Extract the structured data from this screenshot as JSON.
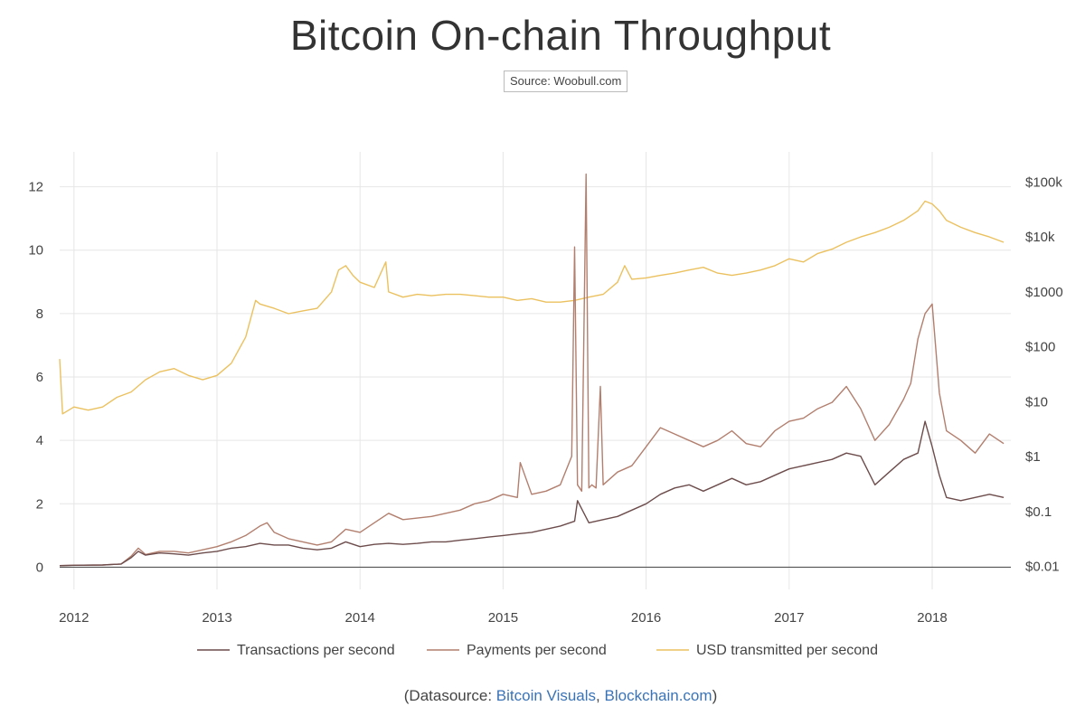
{
  "chart_data": {
    "type": "line",
    "title": "Bitcoin On-chain Throughput",
    "source": "Source: Woobull.com",
    "footer": {
      "prefix": "(Datasource: ",
      "link1": "Bitcoin Visuals",
      "separator": ", ",
      "link2": "Blockchain.com",
      "suffix": ")"
    },
    "x_ticks": [
      "2012",
      "2013",
      "2014",
      "2015",
      "2016",
      "2017",
      "2018"
    ],
    "x_range": [
      2011.9,
      2018.55
    ],
    "y_left": {
      "ticks": [
        "0",
        "2",
        "4",
        "6",
        "8",
        "10",
        "12"
      ],
      "range": [
        -0.7,
        13.1
      ]
    },
    "y_right": {
      "scale": "log",
      "ticks": [
        "$0.01",
        "$0.1",
        "$1",
        "$10",
        "$100",
        "$1000",
        "$10k",
        "$100k"
      ]
    },
    "grid": true,
    "legend_position": "bottom",
    "colors": {
      "transactions": "#6d4c4c",
      "payments": "#b27f6e",
      "usd": "#ebc15f",
      "link": "#3a73b6"
    },
    "series": [
      {
        "name": "Transactions per second",
        "axis": "left",
        "x": [
          2011.9,
          2012.0,
          2012.2,
          2012.33,
          2012.4,
          2012.45,
          2012.5,
          2012.6,
          2012.7,
          2012.8,
          2012.9,
          2013.0,
          2013.1,
          2013.2,
          2013.3,
          2013.4,
          2013.5,
          2013.6,
          2013.7,
          2013.8,
          2013.9,
          2014.0,
          2014.1,
          2014.2,
          2014.3,
          2014.4,
          2014.5,
          2014.6,
          2014.7,
          2014.8,
          2014.9,
          2015.0,
          2015.1,
          2015.2,
          2015.3,
          2015.4,
          2015.5,
          2015.52,
          2015.6,
          2015.7,
          2015.8,
          2015.9,
          2016.0,
          2016.1,
          2016.2,
          2016.3,
          2016.4,
          2016.5,
          2016.6,
          2016.7,
          2016.8,
          2016.9,
          2017.0,
          2017.1,
          2017.2,
          2017.3,
          2017.4,
          2017.5,
          2017.6,
          2017.7,
          2017.8,
          2017.9,
          2017.95,
          2018.0,
          2018.05,
          2018.1,
          2018.2,
          2018.3,
          2018.4,
          2018.5
        ],
        "y": [
          0.05,
          0.06,
          0.07,
          0.1,
          0.3,
          0.5,
          0.38,
          0.45,
          0.42,
          0.38,
          0.45,
          0.5,
          0.6,
          0.65,
          0.75,
          0.7,
          0.7,
          0.6,
          0.55,
          0.6,
          0.8,
          0.65,
          0.72,
          0.75,
          0.72,
          0.75,
          0.8,
          0.8,
          0.85,
          0.9,
          0.95,
          1.0,
          1.05,
          1.1,
          1.2,
          1.3,
          1.45,
          2.1,
          1.4,
          1.5,
          1.6,
          1.8,
          2.0,
          2.3,
          2.5,
          2.6,
          2.4,
          2.6,
          2.8,
          2.6,
          2.7,
          2.9,
          3.1,
          3.2,
          3.3,
          3.4,
          3.6,
          3.5,
          2.6,
          3.0,
          3.4,
          3.6,
          4.6,
          3.8,
          2.9,
          2.2,
          2.1,
          2.2,
          2.3,
          2.2
        ]
      },
      {
        "name": "Payments per second",
        "axis": "left",
        "x": [
          2011.9,
          2012.0,
          2012.2,
          2012.33,
          2012.4,
          2012.45,
          2012.5,
          2012.6,
          2012.7,
          2012.8,
          2012.9,
          2013.0,
          2013.1,
          2013.2,
          2013.3,
          2013.35,
          2013.4,
          2013.5,
          2013.6,
          2013.7,
          2013.8,
          2013.9,
          2014.0,
          2014.1,
          2014.2,
          2014.3,
          2014.4,
          2014.5,
          2014.6,
          2014.7,
          2014.8,
          2014.9,
          2015.0,
          2015.1,
          2015.12,
          2015.2,
          2015.3,
          2015.4,
          2015.48,
          2015.5,
          2015.52,
          2015.55,
          2015.58,
          2015.6,
          2015.62,
          2015.65,
          2015.68,
          2015.7,
          2015.8,
          2015.9,
          2016.0,
          2016.1,
          2016.2,
          2016.3,
          2016.4,
          2016.5,
          2016.6,
          2016.7,
          2016.8,
          2016.9,
          2017.0,
          2017.1,
          2017.2,
          2017.3,
          2017.4,
          2017.5,
          2017.6,
          2017.7,
          2017.8,
          2017.85,
          2017.9,
          2017.95,
          2018.0,
          2018.05,
          2018.1,
          2018.2,
          2018.3,
          2018.4,
          2018.5
        ],
        "y": [
          0.05,
          0.06,
          0.07,
          0.1,
          0.35,
          0.6,
          0.4,
          0.5,
          0.5,
          0.45,
          0.55,
          0.65,
          0.8,
          1.0,
          1.3,
          1.4,
          1.1,
          0.9,
          0.8,
          0.7,
          0.8,
          1.2,
          1.1,
          1.4,
          1.7,
          1.5,
          1.55,
          1.6,
          1.7,
          1.8,
          2.0,
          2.1,
          2.3,
          2.2,
          3.3,
          2.3,
          2.4,
          2.6,
          3.5,
          10.1,
          2.6,
          2.4,
          12.4,
          2.5,
          2.6,
          2.5,
          5.7,
          2.6,
          3.0,
          3.2,
          3.8,
          4.4,
          4.2,
          4.0,
          3.8,
          4.0,
          4.3,
          3.9,
          3.8,
          4.3,
          4.6,
          4.7,
          5.0,
          5.2,
          5.7,
          5.0,
          4.0,
          4.5,
          5.3,
          5.8,
          7.2,
          8.0,
          8.3,
          5.5,
          4.3,
          4.0,
          3.6,
          4.2,
          3.9
        ]
      },
      {
        "name": "USD transmitted per second",
        "axis": "right",
        "x": [
          2011.9,
          2011.92,
          2012.0,
          2012.1,
          2012.2,
          2012.3,
          2012.4,
          2012.5,
          2012.6,
          2012.7,
          2012.8,
          2012.9,
          2013.0,
          2013.1,
          2013.2,
          2013.27,
          2013.3,
          2013.4,
          2013.5,
          2013.6,
          2013.7,
          2013.8,
          2013.85,
          2013.9,
          2013.95,
          2014.0,
          2014.1,
          2014.18,
          2014.2,
          2014.3,
          2014.4,
          2014.5,
          2014.6,
          2014.7,
          2014.8,
          2014.9,
          2015.0,
          2015.1,
          2015.2,
          2015.3,
          2015.4,
          2015.5,
          2015.6,
          2015.7,
          2015.8,
          2015.85,
          2015.9,
          2016.0,
          2016.1,
          2016.2,
          2016.3,
          2016.4,
          2016.5,
          2016.6,
          2016.7,
          2016.8,
          2016.9,
          2017.0,
          2017.1,
          2017.2,
          2017.3,
          2017.4,
          2017.5,
          2017.6,
          2017.7,
          2017.8,
          2017.9,
          2017.95,
          2018.0,
          2018.05,
          2018.1,
          2018.2,
          2018.3,
          2018.4,
          2018.5
        ],
        "y": [
          60,
          6,
          8,
          7,
          8,
          12,
          15,
          25,
          35,
          40,
          30,
          25,
          30,
          50,
          150,
          700,
          600,
          500,
          400,
          450,
          500,
          1000,
          2500,
          3000,
          2000,
          1500,
          1200,
          3500,
          1000,
          800,
          900,
          850,
          900,
          900,
          850,
          800,
          800,
          700,
          750,
          650,
          650,
          700,
          800,
          900,
          1500,
          3000,
          1700,
          1800,
          2000,
          2200,
          2500,
          2800,
          2200,
          2000,
          2200,
          2500,
          3000,
          4000,
          3500,
          5000,
          6000,
          8000,
          10000,
          12000,
          15000,
          20000,
          30000,
          45000,
          40000,
          30000,
          20000,
          15000,
          12000,
          10000,
          8000
        ]
      }
    ]
  }
}
